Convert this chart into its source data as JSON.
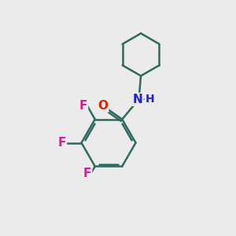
{
  "background_color": "#ebebeb",
  "bond_color": "#2d6b5e",
  "bond_width": 1.8,
  "F_color": "#e0189a",
  "N_color": "#2020cc",
  "O_color": "#dd2200",
  "H_color": "#2020cc",
  "figure_size": [
    3.0,
    3.0
  ],
  "dpi": 100,
  "xlim": [
    0,
    10
  ],
  "ylim": [
    0,
    10
  ]
}
